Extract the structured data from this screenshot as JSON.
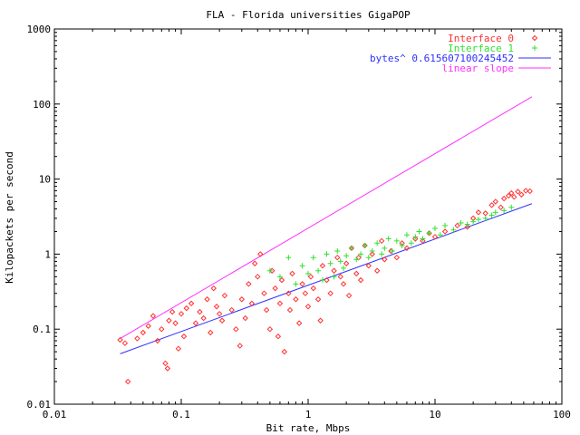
{
  "chart_data": {
    "type": "scatter",
    "title": "FLA - Florida universities GigaPOP",
    "xlabel": "Bit rate, Mbps",
    "ylabel": "Kilopackets per second",
    "x_scale": "log",
    "y_scale": "log",
    "xlim": [
      0.01,
      100
    ],
    "ylim": [
      0.01,
      1000
    ],
    "x_ticks": [
      "0.01",
      "0.1",
      "1",
      "10",
      "100"
    ],
    "y_ticks": [
      "0.01",
      "0.1",
      "1",
      "10",
      "100",
      "1000"
    ],
    "grid": false,
    "legend_position": "top-right",
    "series": [
      {
        "name": "Interface 0",
        "marker": "diamond",
        "color": "#ff3030",
        "points": [
          [
            0.033,
            0.072
          ],
          [
            0.036,
            0.065
          ],
          [
            0.038,
            0.02
          ],
          [
            0.045,
            0.075
          ],
          [
            0.05,
            0.09
          ],
          [
            0.055,
            0.11
          ],
          [
            0.06,
            0.15
          ],
          [
            0.065,
            0.07
          ],
          [
            0.07,
            0.1
          ],
          [
            0.075,
            0.035
          ],
          [
            0.078,
            0.03
          ],
          [
            0.08,
            0.13
          ],
          [
            0.085,
            0.17
          ],
          [
            0.09,
            0.12
          ],
          [
            0.095,
            0.055
          ],
          [
            0.1,
            0.16
          ],
          [
            0.105,
            0.08
          ],
          [
            0.11,
            0.19
          ],
          [
            0.12,
            0.22
          ],
          [
            0.13,
            0.12
          ],
          [
            0.14,
            0.17
          ],
          [
            0.15,
            0.14
          ],
          [
            0.16,
            0.25
          ],
          [
            0.17,
            0.09
          ],
          [
            0.18,
            0.35
          ],
          [
            0.19,
            0.2
          ],
          [
            0.2,
            0.16
          ],
          [
            0.21,
            0.13
          ],
          [
            0.22,
            0.28
          ],
          [
            0.25,
            0.18
          ],
          [
            0.27,
            0.1
          ],
          [
            0.29,
            0.06
          ],
          [
            0.3,
            0.25
          ],
          [
            0.32,
            0.14
          ],
          [
            0.34,
            0.4
          ],
          [
            0.36,
            0.22
          ],
          [
            0.38,
            0.75
          ],
          [
            0.4,
            0.5
          ],
          [
            0.42,
            1.0
          ],
          [
            0.45,
            0.3
          ],
          [
            0.47,
            0.18
          ],
          [
            0.5,
            0.1
          ],
          [
            0.52,
            0.6
          ],
          [
            0.55,
            0.35
          ],
          [
            0.58,
            0.08
          ],
          [
            0.6,
            0.22
          ],
          [
            0.62,
            0.45
          ],
          [
            0.65,
            0.05
          ],
          [
            0.7,
            0.3
          ],
          [
            0.72,
            0.18
          ],
          [
            0.75,
            0.55
          ],
          [
            0.8,
            0.25
          ],
          [
            0.85,
            0.12
          ],
          [
            0.9,
            0.4
          ],
          [
            0.95,
            0.3
          ],
          [
            1.0,
            0.2
          ],
          [
            1.05,
            0.5
          ],
          [
            1.1,
            0.35
          ],
          [
            1.2,
            0.25
          ],
          [
            1.25,
            0.13
          ],
          [
            1.3,
            0.7
          ],
          [
            1.4,
            0.45
          ],
          [
            1.5,
            0.3
          ],
          [
            1.6,
            0.6
          ],
          [
            1.7,
            0.9
          ],
          [
            1.8,
            0.5
          ],
          [
            1.9,
            0.4
          ],
          [
            2.0,
            0.75
          ],
          [
            2.1,
            0.28
          ],
          [
            2.2,
            1.2
          ],
          [
            2.4,
            0.55
          ],
          [
            2.5,
            0.9
          ],
          [
            2.6,
            0.45
          ],
          [
            2.8,
            1.3
          ],
          [
            3.0,
            0.7
          ],
          [
            3.2,
            1.0
          ],
          [
            3.5,
            0.6
          ],
          [
            3.8,
            1.5
          ],
          [
            4.0,
            0.85
          ],
          [
            4.5,
            1.1
          ],
          [
            5.0,
            0.9
          ],
          [
            5.5,
            1.4
          ],
          [
            6.0,
            1.2
          ],
          [
            7.0,
            1.6
          ],
          [
            8.0,
            1.5
          ],
          [
            9.0,
            1.9
          ],
          [
            10.0,
            1.7
          ],
          [
            12.0,
            2.0
          ],
          [
            15.0,
            2.4
          ],
          [
            18.0,
            2.3
          ],
          [
            20.0,
            3.0
          ],
          [
            22.0,
            3.6
          ],
          [
            25.0,
            3.5
          ],
          [
            28.0,
            4.5
          ],
          [
            30.0,
            5.0
          ],
          [
            33.0,
            4.2
          ],
          [
            35.0,
            5.5
          ],
          [
            38.0,
            6.0
          ],
          [
            40.0,
            6.5
          ],
          [
            42.0,
            5.8
          ],
          [
            45.0,
            6.8
          ],
          [
            48.0,
            6.2
          ],
          [
            52.0,
            7.0
          ],
          [
            56.0,
            6.9
          ]
        ]
      },
      {
        "name": "Interface 1",
        "marker": "plus",
        "color": "#30e030",
        "points": [
          [
            0.5,
            0.6
          ],
          [
            0.6,
            0.5
          ],
          [
            0.7,
            0.9
          ],
          [
            0.8,
            0.4
          ],
          [
            0.9,
            0.7
          ],
          [
            1.0,
            0.55
          ],
          [
            1.1,
            0.9
          ],
          [
            1.2,
            0.6
          ],
          [
            1.3,
            0.45
          ],
          [
            1.4,
            1.0
          ],
          [
            1.5,
            0.75
          ],
          [
            1.6,
            0.5
          ],
          [
            1.7,
            1.1
          ],
          [
            1.8,
            0.8
          ],
          [
            1.9,
            0.65
          ],
          [
            2.0,
            0.95
          ],
          [
            2.2,
            1.2
          ],
          [
            2.4,
            0.85
          ],
          [
            2.6,
            1.0
          ],
          [
            2.8,
            1.3
          ],
          [
            3.0,
            0.9
          ],
          [
            3.2,
            1.1
          ],
          [
            3.5,
            1.4
          ],
          [
            3.8,
            1.0
          ],
          [
            4.0,
            1.2
          ],
          [
            4.3,
            1.6
          ],
          [
            4.6,
            1.1
          ],
          [
            5.0,
            1.5
          ],
          [
            5.5,
            1.3
          ],
          [
            6.0,
            1.8
          ],
          [
            6.5,
            1.4
          ],
          [
            7.0,
            1.7
          ],
          [
            7.5,
            2.0
          ],
          [
            8.0,
            1.6
          ],
          [
            9.0,
            1.9
          ],
          [
            10.0,
            2.2
          ],
          [
            11.0,
            1.8
          ],
          [
            12.0,
            2.4
          ],
          [
            14.0,
            2.1
          ],
          [
            16.0,
            2.6
          ],
          [
            18.0,
            2.5
          ],
          [
            20.0,
            2.7
          ],
          [
            22.0,
            2.9
          ],
          [
            25.0,
            3.0
          ],
          [
            28.0,
            3.3
          ],
          [
            30.0,
            3.6
          ],
          [
            35.0,
            3.8
          ],
          [
            40.0,
            4.2
          ]
        ]
      }
    ],
    "lines": [
      {
        "name": "bytes^ 0.615607100245452",
        "color": "#3030ff",
        "points": [
          [
            0.033,
            0.047
          ],
          [
            58.0,
            4.7
          ]
        ]
      },
      {
        "name": "linear slope",
        "color": "#ff30ff",
        "points": [
          [
            0.033,
            0.075
          ],
          [
            58.0,
            125.0
          ]
        ]
      }
    ]
  }
}
